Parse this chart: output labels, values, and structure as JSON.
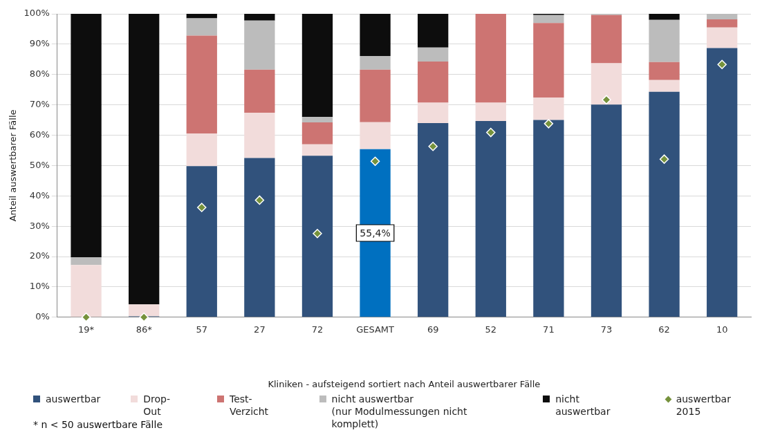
{
  "chart_data": {
    "type": "bar",
    "stacked": true,
    "xlabel": "Kliniken - aufsteigend sortiert nach Anteil auswertbarer Fälle",
    "ylabel": "Anteil auswertbarer Fälle",
    "categories": [
      "19*",
      "86*",
      "57",
      "27",
      "72",
      "GESAMT",
      "69",
      "52",
      "71",
      "73",
      "62",
      "10"
    ],
    "series": [
      {
        "name": "auswertbar",
        "color": "#31527c",
        "colors": [
          "#31527c",
          "#31527c",
          "#31527c",
          "#31527c",
          "#31527c",
          "#0070c0",
          "#31527c",
          "#31527c",
          "#31527c",
          "#31527c",
          "#31527c",
          "#31527c"
        ],
        "values": [
          0,
          0.3,
          49.8,
          52.5,
          53.2,
          55.4,
          64.0,
          64.7,
          65.0,
          70.1,
          74.3,
          88.7
        ],
        "value_labels": [
          null,
          null,
          null,
          null,
          null,
          "55,4%",
          null,
          null,
          null,
          null,
          null,
          null
        ]
      },
      {
        "name": "Drop-Out",
        "color": "#f2dcdb",
        "values": [
          17.2,
          3.9,
          10.7,
          14.9,
          3.8,
          8.9,
          6.7,
          6.0,
          7.4,
          13.6,
          3.9,
          6.8
        ]
      },
      {
        "name": "Test-Verzicht",
        "color": "#cd7472",
        "values": [
          0,
          0,
          32.3,
          14.2,
          7.2,
          17.3,
          13.6,
          29.3,
          24.6,
          15.9,
          5.9,
          2.7
        ]
      },
      {
        "name": "nicht auswertbar\n(nur Modulmessungen nicht komplett)",
        "color": "#bcbcbc",
        "values": [
          2.6,
          0,
          5.7,
          16.2,
          1.8,
          4.5,
          4.6,
          0,
          2.6,
          0.4,
          13.9,
          1.8
        ]
      },
      {
        "name": "nicht auswertbar",
        "color": "#0d0d0d",
        "values": [
          80.2,
          95.8,
          1.5,
          2.2,
          34.0,
          13.9,
          11.1,
          0,
          0.4,
          0,
          2.0,
          0
        ]
      },
      {
        "name": "auswertbar 2015",
        "type": "scatter",
        "marker": "diamond",
        "color": "#76923c",
        "x": [
          "19*",
          "86*",
          "57",
          "27",
          "72",
          "GESAMT",
          "69",
          "52",
          "71",
          "73",
          "62",
          "10"
        ],
        "values": [
          0,
          0,
          36.2,
          38.6,
          27.6,
          51.4,
          56.3,
          60.9,
          63.8,
          71.7,
          52.1,
          83.3
        ]
      }
    ],
    "ylim": [
      0,
      100
    ],
    "yticks": [
      {
        "value": 0,
        "label": "0%"
      },
      {
        "value": 10,
        "label": "10%"
      },
      {
        "value": 20,
        "label": "20%"
      },
      {
        "value": 30,
        "label": "30%"
      },
      {
        "value": 40,
        "label": "40%"
      },
      {
        "value": 50,
        "label": "50%"
      },
      {
        "value": 60,
        "label": "60%"
      },
      {
        "value": 70,
        "label": "70%"
      },
      {
        "value": 80,
        "label": "80%"
      },
      {
        "value": 90,
        "label": "90%"
      },
      {
        "value": 100,
        "label": "100%"
      }
    ],
    "grid": "y",
    "legend": "bottom",
    "annotations": [
      "* n < 50 auswertbare Fälle"
    ]
  }
}
